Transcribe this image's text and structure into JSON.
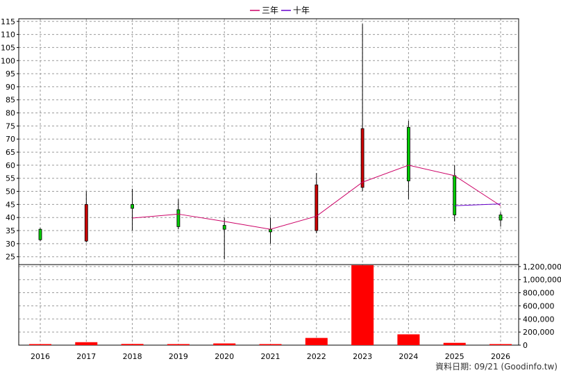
{
  "chart_data": {
    "type": "candlestick",
    "legend": [
      {
        "name": "三年",
        "color": "#cc0066"
      },
      {
        "name": "十年",
        "color": "#6600cc"
      }
    ],
    "footer": "資料日期: 09/21  (Goodinfo.tw)",
    "price_axis": {
      "ylim": [
        22,
        116
      ],
      "ticks": [
        25,
        30,
        35,
        40,
        45,
        50,
        55,
        60,
        65,
        70,
        75,
        80,
        85,
        90,
        95,
        100,
        105,
        110,
        115
      ]
    },
    "volume_axis": {
      "ylim": [
        0,
        1230000
      ],
      "ticks": [
        0,
        200000,
        400000,
        600000,
        800000,
        1000000,
        1200000
      ],
      "tick_labels": [
        "0",
        "200,000",
        "400,000",
        "600,000",
        "800,000",
        "1,000,000",
        "1,200,000"
      ]
    },
    "categories": [
      "2016",
      "2017",
      "2018",
      "2019",
      "2020",
      "2021",
      "2022",
      "2023",
      "2024",
      "2025",
      "2026"
    ],
    "candles": [
      {
        "year": "2016",
        "open": 31.5,
        "high": 36,
        "low": 31,
        "close": 35.5
      },
      {
        "year": "2017",
        "open": 45,
        "high": 50,
        "low": 30.5,
        "close": 31
      },
      {
        "year": "2018",
        "open": 43.5,
        "high": 51,
        "low": 35,
        "close": 45
      },
      {
        "year": "2019",
        "open": 36.5,
        "high": 47,
        "low": 35.5,
        "close": 43
      },
      {
        "year": "2020",
        "open": 35.5,
        "high": 40,
        "low": 24,
        "close": 37
      },
      {
        "year": "2021",
        "open": 34.5,
        "high": 40,
        "low": 30,
        "close": 35.5
      },
      {
        "year": "2022",
        "open": 52.5,
        "high": 57,
        "low": 34,
        "close": 35
      },
      {
        "year": "2023",
        "open": 74,
        "high": 114,
        "low": 50,
        "close": 51.5
      },
      {
        "year": "2024",
        "open": 54,
        "high": 77,
        "low": 47,
        "close": 74.5
      },
      {
        "year": "2025",
        "open": 41,
        "high": 60,
        "low": 38.5,
        "close": 56
      },
      {
        "year": "2026",
        "open": 39,
        "high": 42,
        "low": 36.5,
        "close": 41
      }
    ],
    "series": [
      {
        "name": "三年",
        "color": "#cc0066",
        "points": [
          [
            "2018",
            39.8
          ],
          [
            "2019",
            41.3
          ],
          [
            "2020",
            38.5
          ],
          [
            "2021",
            35.5
          ],
          [
            "2022",
            40.5
          ],
          [
            "2023",
            53.5
          ],
          [
            "2024",
            60
          ],
          [
            "2025",
            56
          ],
          [
            "2026",
            44.5
          ]
        ]
      },
      {
        "name": "十年",
        "color": "#6600cc",
        "points": [
          [
            "2025",
            44.5
          ],
          [
            "2026",
            45.2
          ]
        ]
      }
    ],
    "volumes": [
      {
        "year": "2016",
        "value": 5000
      },
      {
        "year": "2017",
        "value": 45000
      },
      {
        "year": "2018",
        "value": 18000
      },
      {
        "year": "2019",
        "value": 6000
      },
      {
        "year": "2020",
        "value": 26000
      },
      {
        "year": "2021",
        "value": 16000
      },
      {
        "year": "2022",
        "value": 110000
      },
      {
        "year": "2023",
        "value": 1220000
      },
      {
        "year": "2024",
        "value": 165000
      },
      {
        "year": "2025",
        "value": 35000
      },
      {
        "year": "2026",
        "value": 15000
      }
    ],
    "colors": {
      "up": "#00cc00",
      "down": "#cc0000",
      "volume": "#ff0000"
    }
  }
}
